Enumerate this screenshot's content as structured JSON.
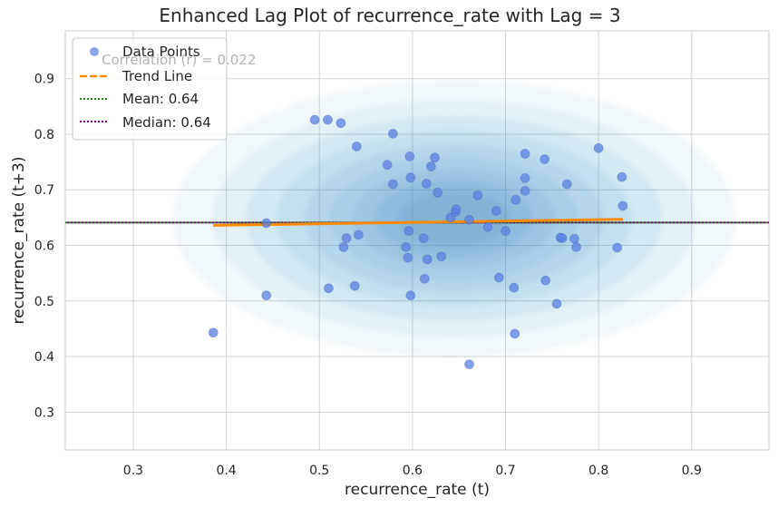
{
  "chart_data": {
    "type": "scatter",
    "title": "Enhanced Lag Plot of recurrence_rate with Lag = 3",
    "xlabel": "recurrence_rate (t)",
    "ylabel": "recurrence_rate (t+3)",
    "xlim": [
      0.227,
      0.983
    ],
    "ylim": [
      0.232,
      0.986
    ],
    "xticks": [
      0.3,
      0.4,
      0.5,
      0.6,
      0.7,
      0.8,
      0.9
    ],
    "yticks": [
      0.3,
      0.4,
      0.5,
      0.6,
      0.7,
      0.8,
      0.9
    ],
    "grid": true,
    "legend_position": "top-left",
    "correlation_text": "Correlation (r) = 0.022",
    "colors": {
      "points": "#5b7fe0",
      "trend": "#ff8c00",
      "mean": "#228b22",
      "median": "#800080",
      "kde": "#2b7bba"
    },
    "series": [
      {
        "name": "Data Points",
        "points": [
          [
            0.386,
            0.443
          ],
          [
            0.443,
            0.64
          ],
          [
            0.443,
            0.51
          ],
          [
            0.495,
            0.826
          ],
          [
            0.509,
            0.826
          ],
          [
            0.523,
            0.82
          ],
          [
            0.51,
            0.523
          ],
          [
            0.526,
            0.597
          ],
          [
            0.529,
            0.613
          ],
          [
            0.538,
            0.527
          ],
          [
            0.54,
            0.778
          ],
          [
            0.542,
            0.619
          ],
          [
            0.573,
            0.745
          ],
          [
            0.579,
            0.71
          ],
          [
            0.579,
            0.801
          ],
          [
            0.593,
            0.597
          ],
          [
            0.595,
            0.578
          ],
          [
            0.596,
            0.626
          ],
          [
            0.597,
            0.76
          ],
          [
            0.598,
            0.722
          ],
          [
            0.598,
            0.51
          ],
          [
            0.612,
            0.613
          ],
          [
            0.613,
            0.54
          ],
          [
            0.615,
            0.711
          ],
          [
            0.616,
            0.575
          ],
          [
            0.62,
            0.742
          ],
          [
            0.624,
            0.758
          ],
          [
            0.627,
            0.695
          ],
          [
            0.631,
            0.58
          ],
          [
            0.641,
            0.65
          ],
          [
            0.646,
            0.66
          ],
          [
            0.647,
            0.665
          ],
          [
            0.661,
            0.646
          ],
          [
            0.661,
            0.386
          ],
          [
            0.67,
            0.69
          ],
          [
            0.681,
            0.633
          ],
          [
            0.69,
            0.662
          ],
          [
            0.693,
            0.542
          ],
          [
            0.7,
            0.626
          ],
          [
            0.709,
            0.524
          ],
          [
            0.71,
            0.441
          ],
          [
            0.711,
            0.682
          ],
          [
            0.721,
            0.765
          ],
          [
            0.721,
            0.721
          ],
          [
            0.721,
            0.698
          ],
          [
            0.742,
            0.755
          ],
          [
            0.743,
            0.537
          ],
          [
            0.755,
            0.495
          ],
          [
            0.759,
            0.614
          ],
          [
            0.761,
            0.613
          ],
          [
            0.766,
            0.71
          ],
          [
            0.774,
            0.612
          ],
          [
            0.776,
            0.597
          ],
          [
            0.8,
            0.775
          ],
          [
            0.82,
            0.596
          ],
          [
            0.825,
            0.723
          ],
          [
            0.826,
            0.671
          ]
        ]
      },
      {
        "name": "Trend Line",
        "x": [
          0.386,
          0.826
        ],
        "y": [
          0.636,
          0.647
        ]
      },
      {
        "name": "Mean: 0.64",
        "y": 0.641
      },
      {
        "name": "Median: 0.64",
        "y": 0.641
      }
    ]
  }
}
